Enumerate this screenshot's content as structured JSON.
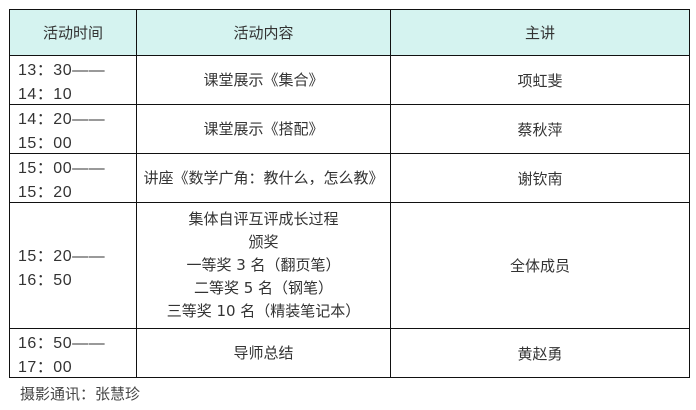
{
  "header": {
    "time": "活动时间",
    "content": "活动内容",
    "speaker": "主讲"
  },
  "rows": [
    {
      "time": "13：30——14：10",
      "content": [
        "课堂展示《集合》"
      ],
      "speaker": "项虹斐"
    },
    {
      "time": "14：20——15：00",
      "content": [
        "课堂展示《搭配》"
      ],
      "speaker": "蔡秋萍"
    },
    {
      "time": "15：00——15：20",
      "content": [
        "讲座《数学广角：教什么，怎么教》"
      ],
      "speaker": "谢钦南"
    },
    {
      "time": "15：20——16：50",
      "content": [
        "集体自评互评成长过程",
        "颁奖",
        "一等奖 3 名（翻页笔）",
        "二等奖 5 名（钢笔）",
        "三等奖 10 名（精装笔记本）"
      ],
      "speaker": "全体成员"
    },
    {
      "time": "16：50——17：00",
      "content": [
        "导师总结"
      ],
      "speaker": "黄赵勇"
    }
  ],
  "footer": "摄影通讯：张慧珍",
  "colors": {
    "header_bg": "#d5f3f0",
    "border": "#111111"
  }
}
